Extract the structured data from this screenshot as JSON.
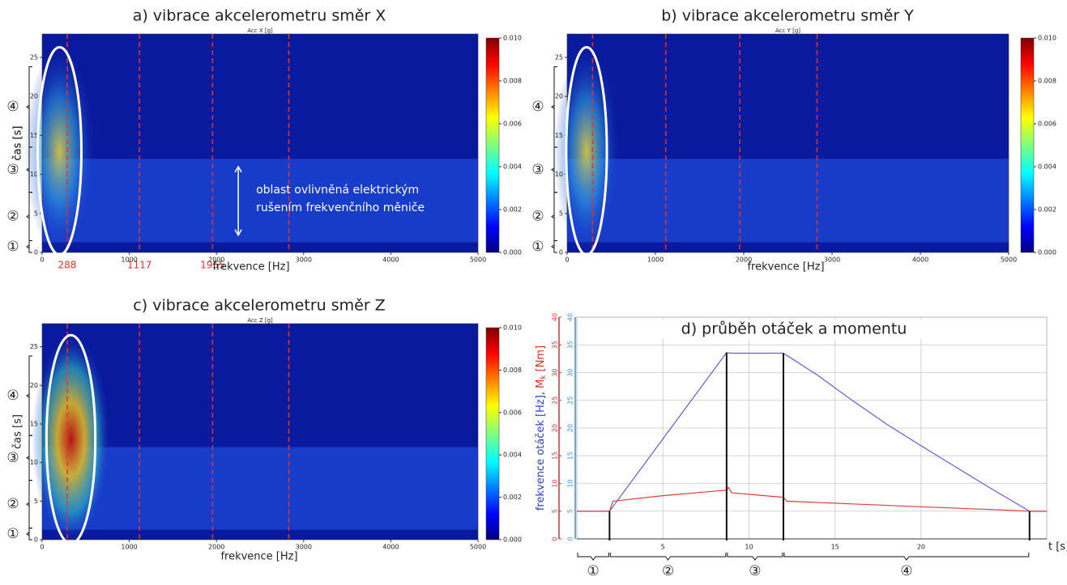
{
  "chart_data": [
    {
      "type": "spectrogram",
      "title": "a) vibrace akcelerometru směr X",
      "subtitle": "Acc X [g]",
      "xlabel": "frekvence [Hz]",
      "ylabel": "čas [s]",
      "xlim": [
        0,
        5000
      ],
      "xticks": [
        0,
        1000,
        2000,
        3000,
        4000,
        5000
      ],
      "ylim": [
        0,
        28
      ],
      "yticks": [
        0,
        5,
        10,
        15,
        20,
        25
      ],
      "colorbar_lim": [
        0,
        0.01
      ],
      "colorbar_ticks": [
        {
          "value": 0,
          "label": "0.000"
        },
        {
          "value": 0.002,
          "label": "0.002"
        },
        {
          "value": 0.004,
          "label": "0.004"
        },
        {
          "value": 0.006,
          "label": "0.006"
        },
        {
          "value": 0.008,
          "label": "0.008"
        },
        {
          "value": 0.01,
          "label": "0.010"
        }
      ],
      "colormap": "jet",
      "vlines": [
        288,
        1117,
        1955,
        2830
      ],
      "vline_color": "#e8312a",
      "vline_labels": [
        288,
        1117,
        1955
      ],
      "annotation": [
        "oblast ovlivněná elektrickým",
        "rušením frekvenčního měniče"
      ],
      "stages": [
        {
          "label": "①",
          "start": 0,
          "end": 1.5
        },
        {
          "label": "②",
          "start": 1.5,
          "end": 7.7
        },
        {
          "label": "③",
          "start": 7.7,
          "end": 13.5
        },
        {
          "label": "④",
          "start": 13.5,
          "end": 23.8
        }
      ]
    },
    {
      "type": "spectrogram",
      "title": "b) vibrace akcelerometru směr Y",
      "subtitle": "Acc Y [g]",
      "xlabel": "frekvence [Hz]",
      "ylabel": "čas [s]",
      "xlim": [
        0,
        5000
      ],
      "xticks": [
        0,
        1000,
        2000,
        3000,
        4000,
        5000
      ],
      "ylim": [
        0,
        28
      ],
      "yticks": [
        0,
        5,
        10,
        15,
        20,
        25
      ],
      "colorbar_lim": [
        0,
        0.01
      ],
      "colorbar_ticks": [
        {
          "value": 0,
          "label": "0.000"
        },
        {
          "value": 0.002,
          "label": "0.002"
        },
        {
          "value": 0.004,
          "label": "0.004"
        },
        {
          "value": 0.006,
          "label": "0.006"
        },
        {
          "value": 0.008,
          "label": "0.008"
        },
        {
          "value": 0.01,
          "label": "0.010"
        }
      ],
      "colormap": "jet",
      "vlines": [
        288,
        1117,
        1955,
        2830
      ],
      "vline_color": "#e8312a",
      "stages": [
        {
          "label": "①",
          "start": 0,
          "end": 1.5
        },
        {
          "label": "②",
          "start": 1.5,
          "end": 7.7
        },
        {
          "label": "③",
          "start": 7.7,
          "end": 13.5
        },
        {
          "label": "④",
          "start": 13.5,
          "end": 23.8
        }
      ]
    },
    {
      "type": "spectrogram",
      "title": "c) vibrace akcelerometru směr Z",
      "subtitle": "Acc Z [g]",
      "xlabel": "frekvence [Hz]",
      "ylabel": "čas [s]",
      "xlim": [
        0,
        5000
      ],
      "xticks": [
        0,
        1000,
        2000,
        3000,
        4000,
        5000
      ],
      "ylim": [
        0,
        28
      ],
      "yticks": [
        0,
        5,
        10,
        15,
        20,
        25
      ],
      "colorbar_lim": [
        0,
        0.01
      ],
      "colorbar_ticks": [
        {
          "value": 0,
          "label": "0.000"
        },
        {
          "value": 0.002,
          "label": "0.002"
        },
        {
          "value": 0.004,
          "label": "0.004"
        },
        {
          "value": 0.006,
          "label": "0.006"
        },
        {
          "value": 0.008,
          "label": "0.008"
        },
        {
          "value": 0.01,
          "label": "0.010"
        }
      ],
      "colormap": "jet",
      "vlines": [
        288,
        1117,
        1955,
        2830
      ],
      "vline_color": "#e8312a",
      "stages": [
        {
          "label": "①",
          "start": 0,
          "end": 1.5
        },
        {
          "label": "②",
          "start": 1.5,
          "end": 7.7
        },
        {
          "label": "③",
          "start": 7.7,
          "end": 13.5
        },
        {
          "label": "④",
          "start": 13.5,
          "end": 23.8
        }
      ]
    },
    {
      "type": "line",
      "title": "d) průběh otáček a momentu",
      "xlabel": "t [s]",
      "ylabel": "frekvence otáček [Hz], ",
      "y2label": [
        "M",
        "k",
        " [Nm]"
      ],
      "xlim": [
        0,
        27.3
      ],
      "xticks": [
        5,
        10,
        15,
        20
      ],
      "ylim": [
        0,
        40
      ],
      "yticks": [
        0,
        5,
        10,
        15,
        20,
        25,
        30,
        35,
        40
      ],
      "y_color": "#3a8fd0",
      "y2lim": [
        0,
        40
      ],
      "y2ticks": [
        0,
        5,
        10,
        15,
        20,
        25,
        30,
        35,
        40
      ],
      "y2_color": "#d93030",
      "grid": true,
      "series": [
        {
          "color": "#5a5ee0",
          "x": [
            0,
            1.9,
            8.7,
            8.9,
            12,
            14,
            16,
            18,
            20,
            22,
            24,
            26.3,
            27.3
          ],
          "values": [
            5,
            5,
            33.6,
            33.5,
            33.5,
            29.5,
            25,
            20.7,
            16.8,
            13,
            9.2,
            5,
            5
          ]
        },
        {
          "color": "#e03a3a",
          "axis": "y2",
          "x": [
            0,
            1.9,
            2.1,
            5,
            8.7,
            8.8,
            9,
            12,
            12.2,
            16,
            20,
            24,
            26.3,
            27.3
          ],
          "values": [
            5,
            5,
            6.8,
            7.8,
            8.8,
            9.3,
            8.3,
            7.5,
            6.8,
            6.3,
            5.8,
            5.3,
            5,
            5
          ]
        }
      ],
      "phase_lines": [
        1.9,
        8.7,
        12,
        26.3
      ],
      "stages": [
        {
          "label": "①",
          "start": 0,
          "end": 1.9
        },
        {
          "label": "②",
          "start": 1.9,
          "end": 8.7
        },
        {
          "label": "③",
          "start": 8.7,
          "end": 12
        },
        {
          "label": "④",
          "start": 12,
          "end": 26.3
        }
      ]
    }
  ]
}
